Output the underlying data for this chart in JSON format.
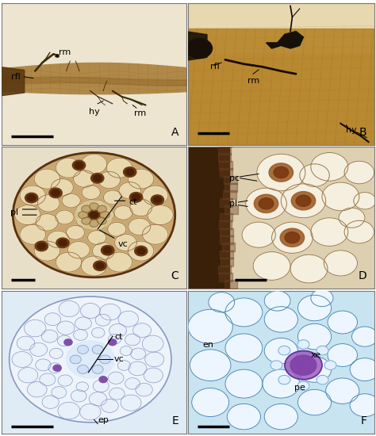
{
  "figure_width": 4.74,
  "figure_height": 5.5,
  "dpi": 100,
  "background_color": "#ffffff",
  "panels": [
    "A",
    "B",
    "C",
    "D",
    "E",
    "F"
  ],
  "panel_positions": {
    "A": [
      0.005,
      0.668,
      0.49,
      0.325
    ],
    "B": [
      0.5,
      0.668,
      0.495,
      0.325
    ],
    "C": [
      0.005,
      0.338,
      0.49,
      0.325
    ],
    "D": [
      0.5,
      0.338,
      0.495,
      0.325
    ],
    "E": [
      0.005,
      0.005,
      0.49,
      0.328
    ],
    "F": [
      0.5,
      0.005,
      0.495,
      0.328
    ]
  },
  "panel_bg": {
    "A": "#f0e8d8",
    "B": "#d8c090",
    "C": "#e8dcc0",
    "D": "#e0d0b0",
    "E": "#e8f0f8",
    "F": "#d0e8f4"
  },
  "root_color_A": "#b08850",
  "root_color_B": "#c09840",
  "scalebar_color": "#000000",
  "label_fontsize": 8,
  "panel_letter_fontsize": 10
}
